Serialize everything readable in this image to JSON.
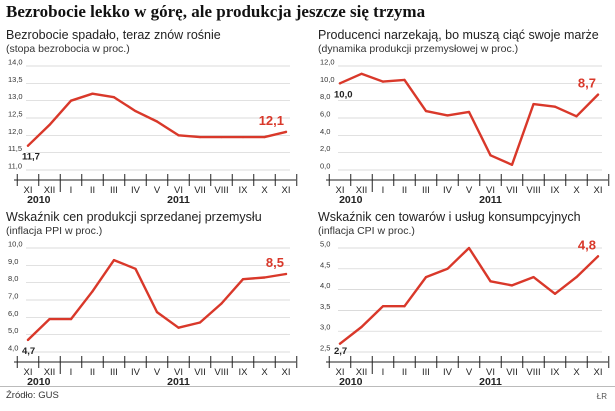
{
  "page": {
    "title": "Bezrobocie lekko w górę, ale produkcja jeszcze się trzyma",
    "source": "Źródło: GUS",
    "credit": "ŁR",
    "series_color": "#d9382a"
  },
  "chart_data": [
    {
      "type": "line",
      "title": "Bezrobocie spadało, teraz znów rośnie",
      "subtitle": "(stopa bezrobocia w proc.)",
      "x": [
        "XI",
        "XII",
        "I",
        "II",
        "III",
        "IV",
        "V",
        "VI",
        "VII",
        "VIII",
        "IX",
        "X",
        "XI"
      ],
      "values": [
        11.7,
        12.3,
        13.0,
        13.2,
        13.1,
        12.7,
        12.4,
        12.0,
        11.95,
        11.95,
        11.95,
        11.95,
        12.1
      ],
      "ylim": [
        11.0,
        14.0
      ],
      "yticks": [
        "11,0",
        "11,5",
        "12,0",
        "12,5",
        "13,0",
        "13,5",
        "14,0"
      ],
      "first_label": "11,7",
      "last_label": "12,1",
      "years": [
        "2010",
        "2011"
      ],
      "grid": true
    },
    {
      "type": "line",
      "title": "Producenci narzekają, bo muszą ciąć swoje marże",
      "subtitle": "(dynamika produkcji przemysłowej w proc.)",
      "x": [
        "XI",
        "XII",
        "I",
        "II",
        "III",
        "IV",
        "V",
        "VI",
        "VII",
        "VIII",
        "IX",
        "X",
        "XI"
      ],
      "values": [
        10.0,
        11.1,
        10.2,
        10.4,
        6.8,
        6.3,
        6.7,
        1.7,
        0.6,
        7.6,
        7.3,
        6.2,
        8.7
      ],
      "ylim": [
        0.0,
        12.0
      ],
      "yticks": [
        "0,0",
        "2,0",
        "4,0",
        "6,0",
        "8,0",
        "10,0",
        "12,0"
      ],
      "first_label": "10,0",
      "last_label": "8,7",
      "years": [
        "2010",
        "2011"
      ],
      "grid": true
    },
    {
      "type": "line",
      "title": "Wskaźnik cen produkcji sprzedanej przemysłu",
      "subtitle": "(inflacja PPI w proc.)",
      "x": [
        "XI",
        "XII",
        "I",
        "II",
        "III",
        "IV",
        "V",
        "VI",
        "VII",
        "VIII",
        "IX",
        "X",
        "XI"
      ],
      "values": [
        4.7,
        5.9,
        5.9,
        7.5,
        9.3,
        8.8,
        6.3,
        5.4,
        5.7,
        6.8,
        8.2,
        8.3,
        8.5
      ],
      "ylim": [
        4.0,
        10.0
      ],
      "yticks": [
        "4,0",
        "5,0",
        "6,0",
        "7,0",
        "8,0",
        "9,0",
        "10,0"
      ],
      "first_label": "4,7",
      "last_label": "8,5",
      "years": [
        "2010",
        "2011"
      ],
      "grid": true
    },
    {
      "type": "line",
      "title": "Wskaźnik cen towarów i usług konsumpcyjnych",
      "subtitle": "(inflacja CPI w proc.)",
      "x": [
        "XI",
        "XII",
        "I",
        "II",
        "III",
        "IV",
        "V",
        "VI",
        "VII",
        "VIII",
        "IX",
        "X",
        "XI"
      ],
      "values": [
        2.7,
        3.1,
        3.6,
        3.6,
        4.3,
        4.5,
        5.0,
        4.2,
        4.1,
        4.3,
        3.9,
        4.3,
        4.8
      ],
      "ylim": [
        2.5,
        5.0
      ],
      "yticks": [
        "2,5",
        "3,0",
        "3,5",
        "4,0",
        "4,5",
        "5,0"
      ],
      "first_label": "2,7",
      "last_label": "4,8",
      "years": [
        "2010",
        "2011"
      ],
      "grid": true
    }
  ]
}
